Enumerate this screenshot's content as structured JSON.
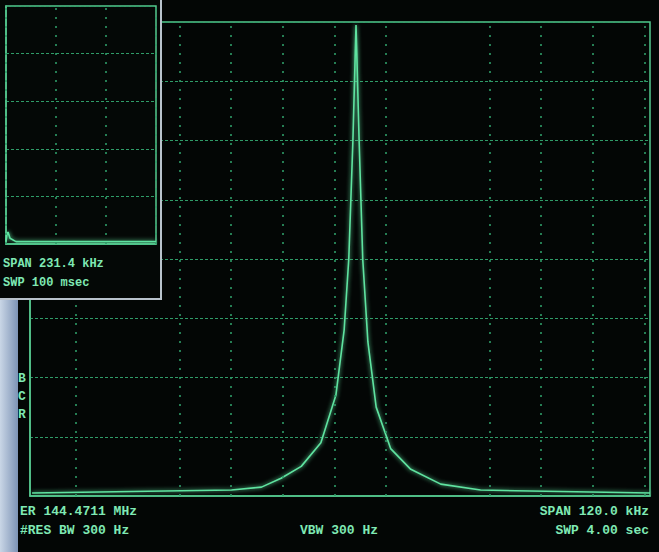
{
  "chart_data": [
    {
      "type": "line",
      "color": "#5fe3a0",
      "grid": true,
      "tick_labels": false,
      "xlim": [
        144.4111,
        144.5311
      ],
      "xticks": [
        144.4111,
        144.4231,
        144.4351,
        144.4471,
        144.4591,
        144.4711,
        144.4831,
        144.4951,
        144.5071,
        144.5191,
        144.5311
      ],
      "ylim": [
        0,
        8
      ],
      "yticks": [
        0,
        1,
        2,
        3,
        4,
        5,
        6,
        7,
        8
      ],
      "x": [
        144.4115,
        144.4501,
        144.4559,
        144.4597,
        144.4636,
        144.4674,
        144.4703,
        144.4719,
        144.4728,
        144.4736,
        144.4742,
        144.4748,
        144.4755,
        144.4765,
        144.4781,
        144.4809,
        144.4848,
        144.4906,
        144.4983,
        144.5311
      ],
      "values": [
        0.05,
        0.1,
        0.15,
        0.3,
        0.5,
        0.9,
        1.7,
        2.8,
        4.0,
        6.0,
        7.95,
        6.0,
        4.0,
        2.6,
        1.5,
        0.8,
        0.45,
        0.2,
        0.1,
        0.05
      ],
      "annotations": [
        "ER 144.4711 MHz",
        "#RES BW 300 Hz",
        "VBW 300 Hz",
        "SPAN 120.0 kHz",
        "SWP 4.00 sec",
        "B",
        "C",
        "R"
      ]
    },
    {
      "type": "line",
      "color": "#5fe3a0",
      "grid": true,
      "tick_labels": false,
      "xlim": [
        0,
        3
      ],
      "xticks": [
        0,
        1,
        2,
        3
      ],
      "ylim": [
        0,
        5
      ],
      "yticks": [
        0,
        1,
        2,
        3,
        4,
        5
      ],
      "x": [
        0,
        0.02,
        0.04,
        0.08,
        0.2,
        3
      ],
      "values": [
        0.05,
        0.2,
        0.25,
        0.12,
        0.05,
        0.05
      ],
      "annotations": [
        "SPAN 231.4 kHz",
        "SWP 100 msec"
      ]
    }
  ]
}
